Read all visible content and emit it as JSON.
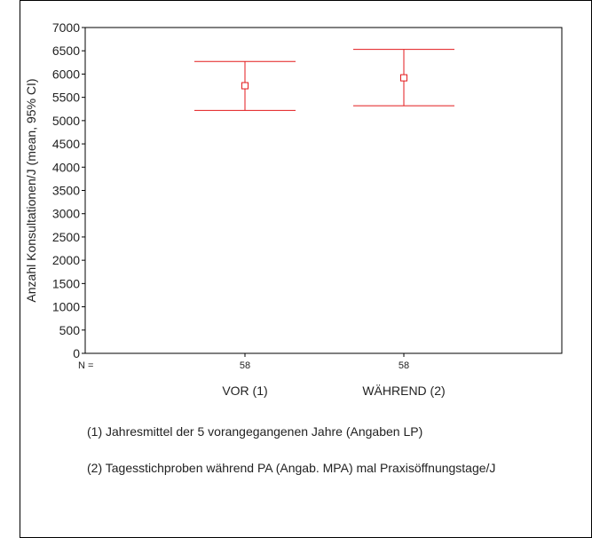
{
  "chart_data": {
    "type": "errorbar",
    "ylabel": "Anzahl Konsultationen/J (mean, 95% CI)",
    "ylim": [
      0,
      7000
    ],
    "yticks": [
      0,
      500,
      1000,
      1500,
      2000,
      2500,
      3000,
      3500,
      4000,
      4500,
      5000,
      5500,
      6000,
      6500,
      7000
    ],
    "n_label": "N =",
    "categories": [
      "VOR (1)",
      "WÄHREND (2)"
    ],
    "n": [
      "58",
      "58"
    ],
    "mean": [
      5750,
      5920
    ],
    "ci_low": [
      5220,
      5320
    ],
    "ci_high": [
      6270,
      6530
    ],
    "color": "#e31a1c",
    "grid": false
  },
  "notes": [
    "(1) Jahresmittel der 5 vorangegangenen Jahre (Angaben LP)",
    "(2) Tagesstichproben während PA (Angab. MPA) mal Praxisöffnungstage/J"
  ]
}
